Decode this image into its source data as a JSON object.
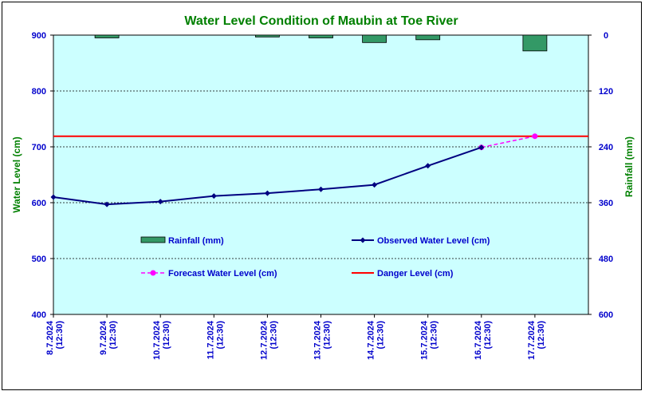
{
  "chart_data": {
    "type": "line",
    "title": "Water Level Condition of  Maubin at Toe River",
    "ylabel": "Water Level (cm)",
    "y2label": "Rainfall (mm)",
    "ylim": [
      400,
      900
    ],
    "yticks": [
      400,
      500,
      600,
      700,
      800,
      900
    ],
    "y2lim": [
      0,
      600
    ],
    "y2ticks": [
      0,
      120,
      240,
      360,
      480,
      600
    ],
    "y2_inverted": true,
    "grid": true,
    "categories": [
      [
        "8.7.2024",
        "(12:30)"
      ],
      [
        "9.7.2024",
        "(12:30)"
      ],
      [
        "10.7.2024",
        "(12:30)"
      ],
      [
        "11.7.2024",
        "(12:30)"
      ],
      [
        "12.7.2024",
        "(12:30)"
      ],
      [
        "13.7.2024",
        "(12:30)"
      ],
      [
        "14.7.2024",
        "(12:30)"
      ],
      [
        "15.7.2024",
        "(12:30)"
      ],
      [
        "16.7.2024",
        "(12:30)"
      ],
      [
        "17.7.2024",
        "(12:30)"
      ]
    ],
    "series": [
      {
        "name": "Rainfall (mm)",
        "kind": "bar",
        "axis": "right",
        "color": "#339966",
        "values": [
          null,
          6,
          null,
          null,
          4,
          6,
          16,
          10,
          null,
          34
        ]
      },
      {
        "name": "Observed Water Level (cm)",
        "kind": "line",
        "axis": "left",
        "color": "#000080",
        "values": [
          610,
          597,
          602,
          612,
          617,
          624,
          632,
          666,
          699,
          null
        ]
      },
      {
        "name": "Forecast Water Level (cm)",
        "kind": "dashed-line",
        "axis": "left",
        "color": "#ff00ff",
        "values": [
          null,
          null,
          null,
          null,
          null,
          null,
          null,
          null,
          699,
          719
        ]
      },
      {
        "name": "Danger Level (cm)",
        "kind": "hline",
        "axis": "left",
        "color": "#ff0000",
        "value": 719
      }
    ],
    "legend_position": "inside-middle"
  },
  "colors": {
    "title": "#008000",
    "axis_text": "#0000cc",
    "plot_bg": "#ccffff",
    "grid": "#000000"
  }
}
